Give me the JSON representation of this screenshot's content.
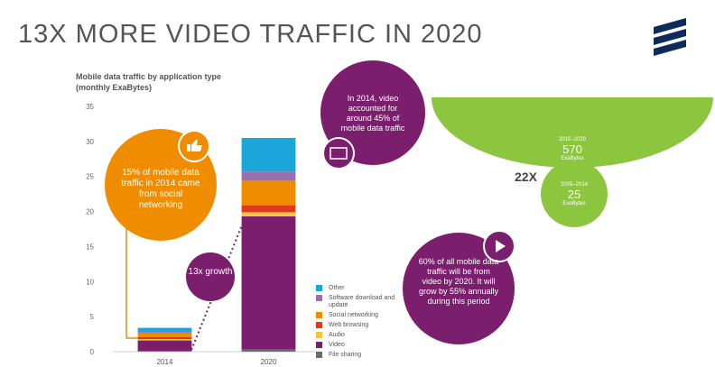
{
  "title": "13X MORE VIDEO TRAFFIC IN 2020",
  "chart_data": {
    "type": "bar",
    "stacked": true,
    "title": "Mobile data traffic by application type",
    "subtitle": "(monthly ExaBytes)",
    "categories": [
      "2014",
      "2020"
    ],
    "series": [
      {
        "name": "File sharing",
        "color": "#6b6b6b",
        "values": [
          0.1,
          0.3
        ]
      },
      {
        "name": "Video",
        "color": "#7b1e6e",
        "values": [
          1.5,
          19
        ]
      },
      {
        "name": "Audio",
        "color": "#f6c343",
        "values": [
          0.2,
          0.6
        ]
      },
      {
        "name": "Web browsing",
        "color": "#e03a1e",
        "values": [
          0.3,
          1.0
        ]
      },
      {
        "name": "Social networking",
        "color": "#f08c00",
        "values": [
          0.5,
          3.5
        ]
      },
      {
        "name": "Software download and update",
        "color": "#9b6fb0",
        "values": [
          0.2,
          1.3
        ]
      },
      {
        "name": "Other",
        "color": "#1aa6d8",
        "values": [
          0.6,
          4.8
        ]
      }
    ],
    "ylim": [
      0,
      35
    ],
    "yticks": [
      0,
      5,
      10,
      15,
      20,
      25,
      30,
      35
    ],
    "grid": false,
    "legend": "right"
  },
  "annotations": {
    "social": "15% of mobile data traffic in 2014 came from social networking",
    "growth": "13x growth",
    "video_2014": "In 2014, video accounted for around 45% of mobile data traffic",
    "period_recent": "2015–2020",
    "value_recent": "570",
    "unit_recent": "ExaBytes",
    "multiplier": "22X",
    "period_early": "2009–2014",
    "value_early": "25",
    "unit_early": "ExaBytes",
    "video_2020": "60% of all mobile data traffic will be from video by 2020. It will grow by 55% annually during this period"
  }
}
